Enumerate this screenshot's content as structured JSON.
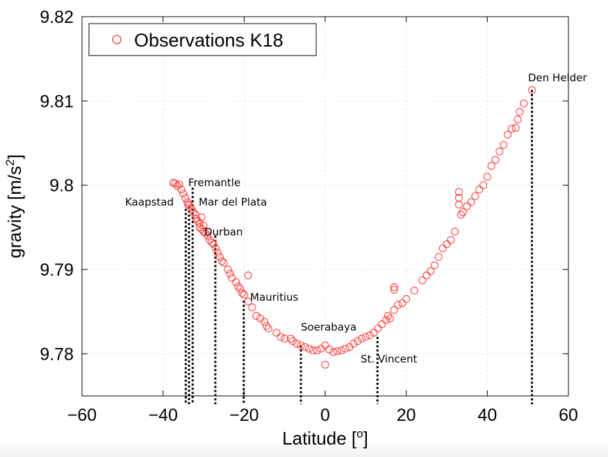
{
  "chart_data": {
    "type": "scatter",
    "title": "",
    "xlabel": "Latitude [",
    "xlabel_sup": "o",
    "xlabel_end": "]",
    "ylabel": "gravity [m/s",
    "ylabel_sup": "2",
    "ylabel_end": "]",
    "xlim": [
      -60,
      60
    ],
    "ylim": [
      9.775,
      9.82
    ],
    "xticks": [
      "-60",
      "-40",
      "-20",
      "0",
      "20",
      "40",
      "60"
    ],
    "xtick_values": [
      -60,
      -40,
      -20,
      0,
      20,
      40,
      60
    ],
    "yticks": [
      "9.78",
      "9.79",
      "9.8",
      "9.81",
      "9.82"
    ],
    "ytick_values": [
      9.78,
      9.79,
      9.8,
      9.81,
      9.82
    ],
    "grid": true,
    "legend": {
      "placement": "top-left",
      "entries": [
        "Observations K18"
      ]
    },
    "marker_color": "#ff3333",
    "series": [
      {
        "name": "Observations K18",
        "points": [
          [
            -37.5,
            9.8003
          ],
          [
            -37,
            9.8002
          ],
          [
            -36.5,
            9.7999
          ],
          [
            -36,
            9.8001
          ],
          [
            -35.5,
            9.7995
          ],
          [
            -35,
            9.799
          ],
          [
            -34.5,
            9.7985
          ],
          [
            -34,
            9.798
          ],
          [
            -33.8,
            9.7977
          ],
          [
            -33.5,
            9.7976
          ],
          [
            -33,
            9.7972
          ],
          [
            -32.5,
            9.7968
          ],
          [
            -32,
            9.7965
          ],
          [
            -31.8,
            9.796
          ],
          [
            -31.5,
            9.7958
          ],
          [
            -31,
            9.7955
          ],
          [
            -31,
            9.795
          ],
          [
            -30.5,
            9.7962
          ],
          [
            -30.5,
            9.7948
          ],
          [
            -30,
            9.7945
          ],
          [
            -30,
            9.7952
          ],
          [
            -29.5,
            9.7943
          ],
          [
            -29,
            9.794
          ],
          [
            -28.5,
            9.7935
          ],
          [
            -28,
            9.7932
          ],
          [
            -27.5,
            9.793
          ],
          [
            -27,
            9.7925
          ],
          [
            -26.5,
            9.792
          ],
          [
            -26,
            9.7915
          ],
          [
            -25.5,
            9.791
          ],
          [
            -25,
            9.7908
          ],
          [
            -24,
            9.79
          ],
          [
            -23.5,
            9.7895
          ],
          [
            -23,
            9.789
          ],
          [
            -22,
            9.7885
          ],
          [
            -21.5,
            9.788
          ],
          [
            -21,
            9.7877
          ],
          [
            -20.5,
            9.7872
          ],
          [
            -20,
            9.787
          ],
          [
            -19,
            9.7893
          ],
          [
            -19,
            9.7862
          ],
          [
            -18,
            9.7855
          ],
          [
            -17,
            9.7845
          ],
          [
            -16,
            9.7842
          ],
          [
            -15,
            9.7838
          ],
          [
            -14.5,
            9.7833
          ],
          [
            -14,
            9.783
          ],
          [
            -12,
            9.7825
          ],
          [
            -11,
            9.782
          ],
          [
            -10,
            9.7818
          ],
          [
            -8.5,
            9.7818
          ],
          [
            -8,
            9.7815
          ],
          [
            -7,
            9.7812
          ],
          [
            -6,
            9.781
          ],
          [
            -5,
            9.7808
          ],
          [
            -4,
            9.7806
          ],
          [
            -3,
            9.7804
          ],
          [
            -2,
            9.7804
          ],
          [
            -1,
            9.7806
          ],
          [
            0,
            9.781
          ],
          [
            0,
            9.7787
          ],
          [
            1,
            9.7805
          ],
          [
            2,
            9.7802
          ],
          [
            3,
            9.7803
          ],
          [
            4,
            9.7804
          ],
          [
            5,
            9.7806
          ],
          [
            6,
            9.7808
          ],
          [
            7,
            9.7812
          ],
          [
            8,
            9.7815
          ],
          [
            9,
            9.7818
          ],
          [
            10,
            9.782
          ],
          [
            11,
            9.7822
          ],
          [
            12,
            9.7825
          ],
          [
            13,
            9.783
          ],
          [
            14,
            9.7835
          ],
          [
            15,
            9.784
          ],
          [
            15.5,
            9.7845
          ],
          [
            16,
            9.7842
          ],
          [
            17,
            9.7852
          ],
          [
            17,
            9.7876
          ],
          [
            17,
            9.7879
          ],
          [
            18,
            9.7858
          ],
          [
            19,
            9.786
          ],
          [
            20,
            9.7865
          ],
          [
            22,
            9.7875
          ],
          [
            24,
            9.7887
          ],
          [
            25,
            9.7893
          ],
          [
            26,
            9.7898
          ],
          [
            27,
            9.7905
          ],
          [
            28,
            9.7915
          ],
          [
            29,
            9.7925
          ],
          [
            30,
            9.793
          ],
          [
            31,
            9.7935
          ],
          [
            32,
            9.7945
          ],
          [
            33,
            9.7992
          ],
          [
            33,
            9.7985
          ],
          [
            33,
            9.7977
          ],
          [
            33.5,
            9.7965
          ],
          [
            34,
            9.7968
          ],
          [
            35,
            9.7975
          ],
          [
            36,
            9.798
          ],
          [
            37,
            9.7987
          ],
          [
            38,
            9.7995
          ],
          [
            39,
            9.8
          ],
          [
            40,
            9.801
          ],
          [
            41,
            9.8023
          ],
          [
            42,
            9.803
          ],
          [
            43,
            9.804
          ],
          [
            44,
            9.8048
          ],
          [
            45,
            9.806
          ],
          [
            46,
            9.8067
          ],
          [
            47,
            9.8068
          ],
          [
            47.5,
            9.8078
          ],
          [
            48,
            9.8087
          ],
          [
            49,
            9.8097
          ],
          [
            51,
            9.8113
          ]
        ]
      }
    ],
    "stations": [
      {
        "name": "Kaapstad",
        "lat": -34.4,
        "g": 9.7972,
        "anchor": "end"
      },
      {
        "name": "Fremantle",
        "lat": -32.7,
        "g": 9.7997,
        "anchor": "start"
      },
      {
        "name": "Mar del Plata",
        "lat": -33.6,
        "g": 9.7975,
        "anchor": "start"
      },
      {
        "name": "Durban",
        "lat": -27.1,
        "g": 9.794,
        "anchor": "start"
      },
      {
        "name": "Mauritius",
        "lat": -20.1,
        "g": 9.7863,
        "anchor": "start"
      },
      {
        "name": "Soerabaya",
        "lat": -6.0,
        "g": 9.781,
        "anchor": "start"
      },
      {
        "name": "St. Vincent",
        "lat": 12.9,
        "g": 9.782,
        "anchor": "start"
      },
      {
        "name": "Den Helder",
        "lat": 51.0,
        "g": 9.8113,
        "anchor": "start"
      }
    ]
  }
}
